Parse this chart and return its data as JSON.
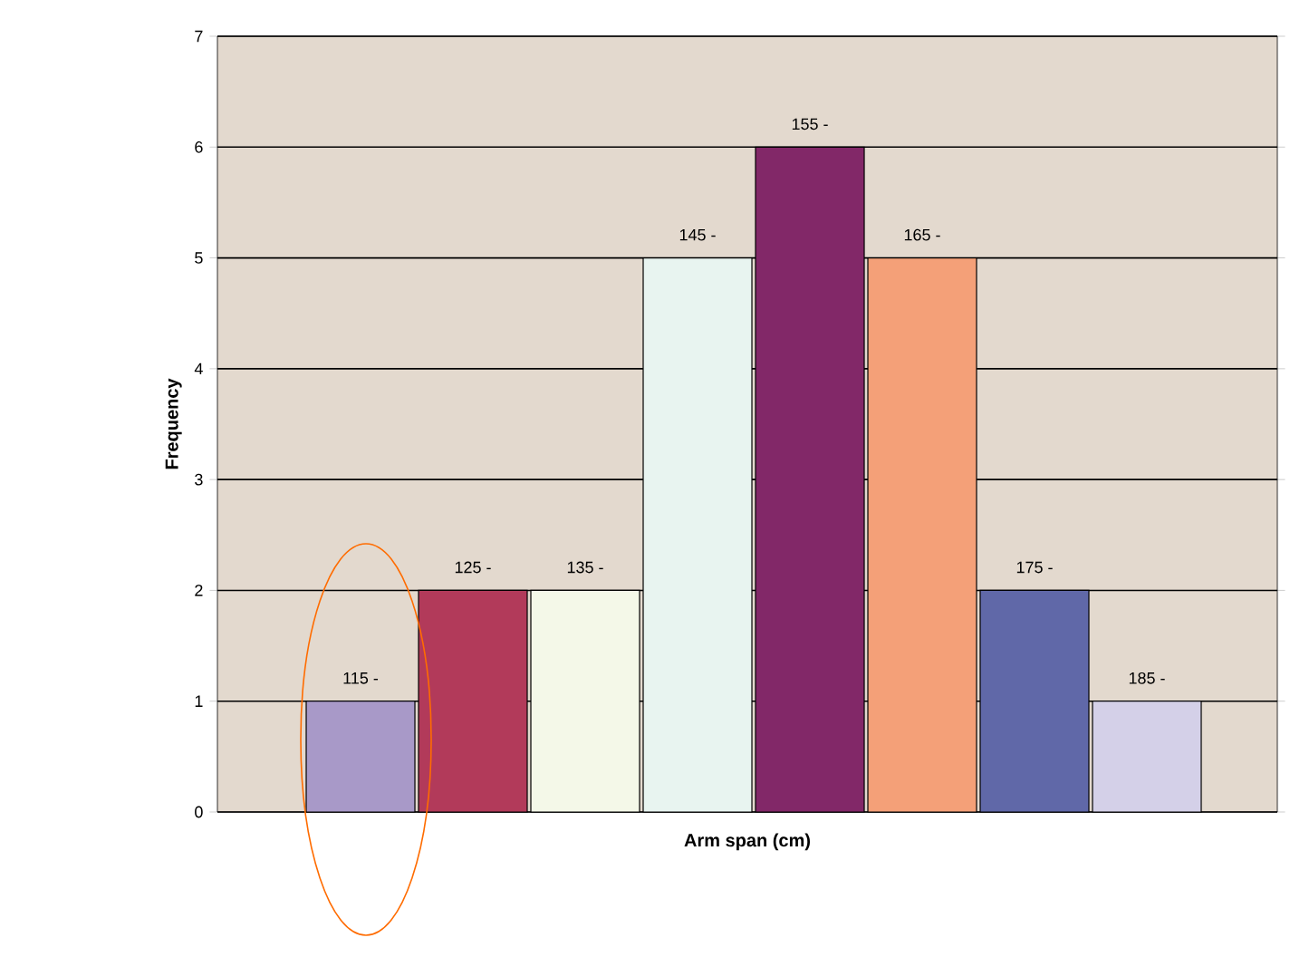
{
  "chart_data": {
    "type": "bar",
    "xlabel": "Arm span (cm)",
    "ylabel": "Frequency",
    "categories": [
      "115 -",
      "125 -",
      "135 -",
      "145 -",
      "155 -",
      "165 -",
      "175 -",
      "185 -"
    ],
    "values": [
      1,
      2,
      2,
      5,
      6,
      5,
      2,
      1
    ],
    "colors": [
      "#a899c8",
      "#b23a5a",
      "#f4f8e8",
      "#e8f4f0",
      "#822868",
      "#f4a078",
      "#6068a8",
      "#d4d0e8"
    ],
    "ylim": [
      0,
      7
    ],
    "yticks": [
      0,
      1,
      2,
      3,
      4,
      5,
      6,
      7
    ],
    "grid": "y"
  }
}
